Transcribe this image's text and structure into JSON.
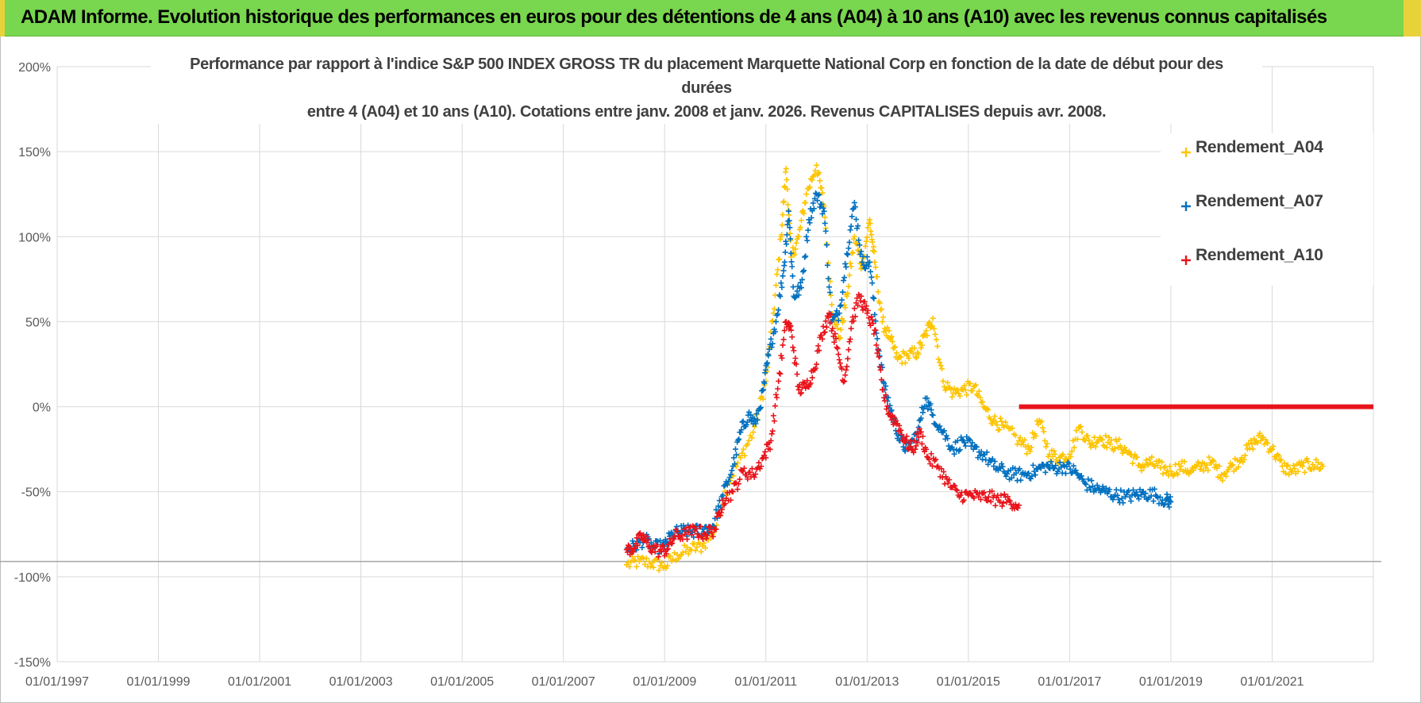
{
  "header": {
    "title": "ADAM Informe. Evolution historique des performances en euros pour des détentions de 4 ans (A04) à 10 ans (A10) avec les revenus connus capitalisés"
  },
  "colors": {
    "banner": "#79d64f",
    "banner_edge": "#e8d23a",
    "A04": "#fec400",
    "A07": "#0070c0",
    "A10": "#e8141b",
    "grid": "#d9d9d9",
    "axis_text": "#595959"
  },
  "chart_data": {
    "type": "scatter",
    "title_line1": "Performance par rapport à l'indice S&P 500 INDEX GROSS TR  du placement Marquette National Corp en fonction de la date de début pour des durées",
    "title_line2": "entre 4 (A04) et 10 ans (A10).  Cotations entre janv. 2008 et janv. 2026. Revenus CAPITALISES  depuis avr. 2008.",
    "xlabel": "",
    "ylabel": "",
    "x_range": [
      1997.0,
      2023.0
    ],
    "ylim": [
      -150,
      200
    ],
    "y_ticks": [
      -150,
      -100,
      -50,
      0,
      50,
      100,
      150,
      200
    ],
    "y_tick_labels": [
      "-150%",
      "-100%",
      "-50%",
      "0%",
      "50%",
      "100%",
      "150%",
      "200%"
    ],
    "x_ticks": [
      1997,
      1999,
      2001,
      2003,
      2005,
      2007,
      2009,
      2011,
      2013,
      2015,
      2017,
      2019,
      2021
    ],
    "x_tick_labels": [
      "01/01/1997",
      "01/01/1999",
      "01/01/2001",
      "01/01/2003",
      "01/01/2005",
      "01/01/2007",
      "01/01/2009",
      "01/01/2011",
      "01/01/2013",
      "01/01/2015",
      "01/01/2017",
      "01/01/2019",
      "01/01/2021"
    ],
    "reference_line_y": -91,
    "legend_position": "top-right",
    "series": [
      {
        "name": "Rendement_A04",
        "color": "#fec400",
        "points": [
          [
            2008.25,
            -93
          ],
          [
            2008.5,
            -91
          ],
          [
            2008.75,
            -92
          ],
          [
            2009.0,
            -94
          ],
          [
            2009.25,
            -87
          ],
          [
            2009.5,
            -84
          ],
          [
            2009.75,
            -82
          ],
          [
            2010.0,
            -72
          ],
          [
            2010.25,
            -45
          ],
          [
            2010.5,
            -30
          ],
          [
            2010.75,
            -15
          ],
          [
            2011.0,
            15
          ],
          [
            2011.15,
            55
          ],
          [
            2011.3,
            100
          ],
          [
            2011.4,
            140
          ],
          [
            2011.5,
            88
          ],
          [
            2011.65,
            100
          ],
          [
            2011.8,
            125
          ],
          [
            2012.0,
            142
          ],
          [
            2012.15,
            118
          ],
          [
            2012.3,
            60
          ],
          [
            2012.45,
            40
          ],
          [
            2012.6,
            65
          ],
          [
            2012.75,
            100
          ],
          [
            2012.9,
            82
          ],
          [
            2013.05,
            110
          ],
          [
            2013.15,
            85
          ],
          [
            2013.3,
            50
          ],
          [
            2013.45,
            40
          ],
          [
            2013.6,
            28
          ],
          [
            2013.8,
            30
          ],
          [
            2014.0,
            32
          ],
          [
            2014.15,
            42
          ],
          [
            2014.3,
            52
          ],
          [
            2014.5,
            15
          ],
          [
            2014.7,
            8
          ],
          [
            2014.9,
            10
          ],
          [
            2015.1,
            12
          ],
          [
            2015.3,
            0
          ],
          [
            2015.5,
            -8
          ],
          [
            2015.7,
            -12
          ],
          [
            2016.0,
            -20
          ],
          [
            2016.2,
            -25
          ],
          [
            2016.4,
            -8
          ],
          [
            2016.6,
            -28
          ],
          [
            2016.8,
            -30
          ],
          [
            2017.0,
            -28
          ],
          [
            2017.2,
            -12
          ],
          [
            2017.4,
            -22
          ],
          [
            2017.6,
            -18
          ],
          [
            2017.8,
            -22
          ],
          [
            2018.0,
            -23
          ],
          [
            2018.2,
            -28
          ],
          [
            2018.4,
            -35
          ],
          [
            2018.6,
            -33
          ],
          [
            2018.8,
            -36
          ],
          [
            2019.0,
            -38
          ],
          [
            2019.2,
            -35
          ],
          [
            2019.4,
            -38
          ],
          [
            2019.6,
            -35
          ],
          [
            2019.8,
            -33
          ],
          [
            2020.0,
            -40
          ],
          [
            2020.2,
            -35
          ],
          [
            2020.4,
            -30
          ],
          [
            2020.6,
            -22
          ],
          [
            2020.8,
            -18
          ],
          [
            2021.0,
            -25
          ],
          [
            2021.2,
            -35
          ],
          [
            2021.4,
            -38
          ],
          [
            2021.6,
            -35
          ],
          [
            2021.8,
            -34
          ],
          [
            2022.0,
            -35
          ]
        ]
      },
      {
        "name": "Rendement_A07",
        "color": "#0070c0",
        "points": [
          [
            2008.25,
            -84
          ],
          [
            2008.4,
            -82
          ],
          [
            2008.6,
            -78
          ],
          [
            2008.8,
            -83
          ],
          [
            2009.0,
            -82
          ],
          [
            2009.15,
            -75
          ],
          [
            2009.35,
            -73
          ],
          [
            2009.55,
            -74
          ],
          [
            2009.75,
            -72
          ],
          [
            2009.95,
            -70
          ],
          [
            2010.15,
            -52
          ],
          [
            2010.35,
            -35
          ],
          [
            2010.5,
            -15
          ],
          [
            2010.65,
            -5
          ],
          [
            2010.8,
            -10
          ],
          [
            2010.95,
            10
          ],
          [
            2011.05,
            30
          ],
          [
            2011.2,
            50
          ],
          [
            2011.35,
            80
          ],
          [
            2011.45,
            115
          ],
          [
            2011.55,
            65
          ],
          [
            2011.7,
            70
          ],
          [
            2011.85,
            110
          ],
          [
            2012.0,
            125
          ],
          [
            2012.15,
            115
          ],
          [
            2012.3,
            50
          ],
          [
            2012.45,
            55
          ],
          [
            2012.6,
            90
          ],
          [
            2012.75,
            120
          ],
          [
            2012.9,
            85
          ],
          [
            2013.05,
            85
          ],
          [
            2013.2,
            40
          ],
          [
            2013.35,
            10
          ],
          [
            2013.5,
            -5
          ],
          [
            2013.65,
            -20
          ],
          [
            2013.8,
            -25
          ],
          [
            2014.0,
            -15
          ],
          [
            2014.15,
            5
          ],
          [
            2014.3,
            -5
          ],
          [
            2014.5,
            -15
          ],
          [
            2014.7,
            -25
          ],
          [
            2014.9,
            -20
          ],
          [
            2015.1,
            -25
          ],
          [
            2015.3,
            -28
          ],
          [
            2015.5,
            -35
          ],
          [
            2015.7,
            -38
          ],
          [
            2015.9,
            -40
          ],
          [
            2016.1,
            -40
          ],
          [
            2016.3,
            -38
          ],
          [
            2016.5,
            -35
          ],
          [
            2016.7,
            -36
          ],
          [
            2016.9,
            -35
          ],
          [
            2017.1,
            -38
          ],
          [
            2017.3,
            -45
          ],
          [
            2017.5,
            -48
          ],
          [
            2017.7,
            -50
          ],
          [
            2017.9,
            -52
          ],
          [
            2018.1,
            -53
          ],
          [
            2018.3,
            -52
          ],
          [
            2018.5,
            -51
          ],
          [
            2018.7,
            -52
          ],
          [
            2018.9,
            -55
          ],
          [
            2019.0,
            -56
          ]
        ]
      },
      {
        "name": "Rendement_A10",
        "color": "#e8141b",
        "points": [
          [
            2008.25,
            -84
          ],
          [
            2008.4,
            -83
          ],
          [
            2008.55,
            -76
          ],
          [
            2008.7,
            -82
          ],
          [
            2008.9,
            -85
          ],
          [
            2009.05,
            -84
          ],
          [
            2009.2,
            -76
          ],
          [
            2009.4,
            -75
          ],
          [
            2009.6,
            -73
          ],
          [
            2009.8,
            -75
          ],
          [
            2010.0,
            -72
          ],
          [
            2010.15,
            -55
          ],
          [
            2010.35,
            -50
          ],
          [
            2010.55,
            -38
          ],
          [
            2010.75,
            -40
          ],
          [
            2010.95,
            -30
          ],
          [
            2011.1,
            -20
          ],
          [
            2011.25,
            15
          ],
          [
            2011.4,
            50
          ],
          [
            2011.5,
            45
          ],
          [
            2011.65,
            10
          ],
          [
            2011.8,
            12
          ],
          [
            2011.95,
            22
          ],
          [
            2012.1,
            42
          ],
          [
            2012.25,
            55
          ],
          [
            2012.4,
            35
          ],
          [
            2012.55,
            15
          ],
          [
            2012.7,
            50
          ],
          [
            2012.85,
            65
          ],
          [
            2013.0,
            55
          ],
          [
            2013.15,
            45
          ],
          [
            2013.3,
            10
          ],
          [
            2013.45,
            -5
          ],
          [
            2013.6,
            -10
          ],
          [
            2013.75,
            -20
          ],
          [
            2013.9,
            -25
          ],
          [
            2014.05,
            -15
          ],
          [
            2014.2,
            -30
          ],
          [
            2014.4,
            -35
          ],
          [
            2014.6,
            -45
          ],
          [
            2014.8,
            -52
          ],
          [
            2015.0,
            -52
          ],
          [
            2015.2,
            -53
          ],
          [
            2015.4,
            -53
          ],
          [
            2015.6,
            -55
          ],
          [
            2015.8,
            -55
          ],
          [
            2016.0,
            -58
          ]
        ],
        "flat_segment": {
          "x_start": 2016.0,
          "x_end": 2023.0,
          "y": 0
        }
      }
    ]
  },
  "legend": {
    "items": [
      {
        "label": "Rendement_A04",
        "color": "#fec400"
      },
      {
        "label": "Rendement_A07",
        "color": "#0070c0"
      },
      {
        "label": "Rendement_A10",
        "color": "#e8141b"
      }
    ]
  }
}
